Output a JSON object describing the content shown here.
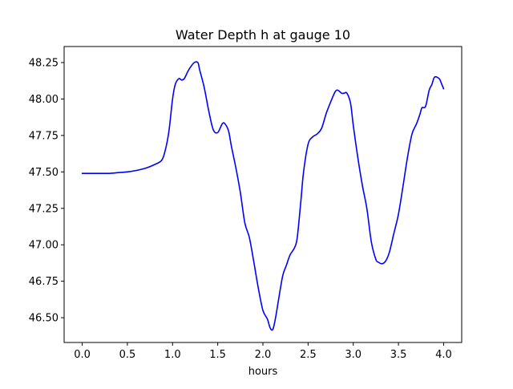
{
  "chart_data": {
    "type": "line",
    "title": "Water Depth h at gauge 10",
    "xlabel": "hours",
    "ylabel": "",
    "xlim": [
      -0.2,
      4.2
    ],
    "ylim": [
      46.33,
      48.36
    ],
    "grid": false,
    "xticks": [
      0.0,
      0.5,
      1.0,
      1.5,
      2.0,
      2.5,
      3.0,
      3.5,
      4.0
    ],
    "xtick_labels": [
      "0.0",
      "0.5",
      "1.0",
      "1.5",
      "2.0",
      "2.5",
      "3.0",
      "3.5",
      "4.0"
    ],
    "yticks": [
      46.5,
      46.75,
      47.0,
      47.25,
      47.5,
      47.75,
      48.0,
      48.25
    ],
    "ytick_labels": [
      "46.50",
      "46.75",
      "47.00",
      "47.25",
      "47.50",
      "47.75",
      "48.00",
      "48.25"
    ],
    "series": [
      {
        "color": "#0000ff",
        "x": [
          0.0,
          0.2,
          0.3,
          0.4,
          0.5,
          0.6,
          0.7,
          0.8,
          0.88,
          0.92,
          0.96,
          1.0,
          1.03,
          1.07,
          1.1,
          1.13,
          1.17,
          1.2,
          1.24,
          1.28,
          1.3,
          1.35,
          1.4,
          1.45,
          1.5,
          1.55,
          1.58,
          1.62,
          1.65,
          1.7,
          1.75,
          1.8,
          1.85,
          1.9,
          1.95,
          2.0,
          2.05,
          2.08,
          2.11,
          2.14,
          2.18,
          2.22,
          2.26,
          2.3,
          2.35,
          2.38,
          2.42,
          2.45,
          2.5,
          2.55,
          2.6,
          2.65,
          2.7,
          2.75,
          2.8,
          2.83,
          2.87,
          2.9,
          2.93,
          2.97,
          3.0,
          3.05,
          3.1,
          3.15,
          3.2,
          3.25,
          3.28,
          3.32,
          3.36,
          3.4,
          3.45,
          3.5,
          3.55,
          3.6,
          3.65,
          3.7,
          3.74,
          3.76,
          3.8,
          3.84,
          3.87,
          3.9,
          3.95,
          3.98,
          4.0
        ],
        "y": [
          47.49,
          47.49,
          47.49,
          47.495,
          47.5,
          47.51,
          47.525,
          47.55,
          47.58,
          47.65,
          47.78,
          48.0,
          48.1,
          48.14,
          48.13,
          48.14,
          48.19,
          48.22,
          48.25,
          48.25,
          48.2,
          48.08,
          47.92,
          47.79,
          47.77,
          47.83,
          47.83,
          47.78,
          47.68,
          47.53,
          47.36,
          47.15,
          47.05,
          46.88,
          46.7,
          46.55,
          46.49,
          46.43,
          46.42,
          46.5,
          46.65,
          46.79,
          46.86,
          46.93,
          46.98,
          47.05,
          47.3,
          47.5,
          47.69,
          47.74,
          47.76,
          47.8,
          47.9,
          47.98,
          48.05,
          48.06,
          48.04,
          48.04,
          48.04,
          47.97,
          47.82,
          47.6,
          47.41,
          47.25,
          47.02,
          46.9,
          46.88,
          46.87,
          46.89,
          46.95,
          47.08,
          47.21,
          47.4,
          47.6,
          47.76,
          47.83,
          47.9,
          47.94,
          47.95,
          48.06,
          48.1,
          48.15,
          48.14,
          48.1,
          48.07
        ]
      }
    ]
  }
}
